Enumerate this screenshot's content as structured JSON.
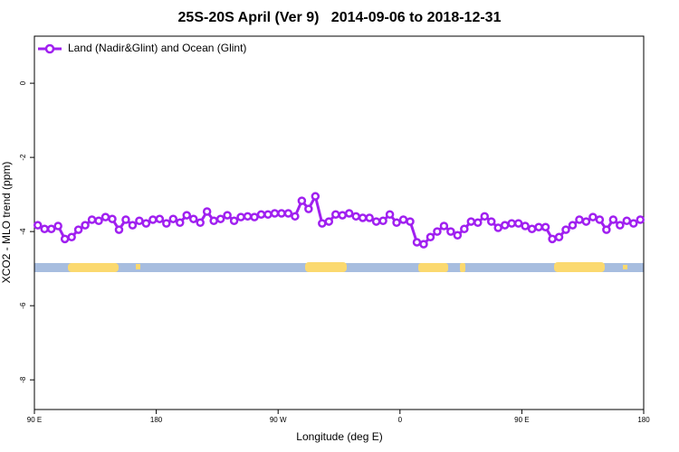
{
  "chart_data": {
    "type": "line",
    "title": "25S-20S April (Ver 9)   2014-09-06 to 2018-12-31",
    "x_label": "Longitude (deg E)",
    "y_label": "XCO2 - MLO trend (ppm)",
    "xlim": [
      90,
      540
    ],
    "xticks": [
      {
        "value": 90,
        "label": "90 E"
      },
      {
        "value": 180,
        "label": "180"
      },
      {
        "value": 270,
        "label": "90 W"
      },
      {
        "value": 360,
        "label": "0"
      },
      {
        "value": 450,
        "label": "90 E"
      },
      {
        "value": 540,
        "label": "180"
      }
    ],
    "ylim": [
      -8.8,
      1.27
    ],
    "yticks": [
      0,
      -2,
      -4,
      -6,
      -8
    ],
    "legend": "top-left",
    "x": [
      92.5,
      97.5,
      102.5,
      107.5,
      112.5,
      117.5,
      122.5,
      127.5,
      132.5,
      137.5,
      142.5,
      147.5,
      152.5,
      157.5,
      162.5,
      167.5,
      172.5,
      177.5,
      182.5,
      187.5,
      192.5,
      197.5,
      202.5,
      207.5,
      212.5,
      217.5,
      222.5,
      227.5,
      232.5,
      237.5,
      242.5,
      247.5,
      252.5,
      257.5,
      262.5,
      267.5,
      272.5,
      277.5,
      282.5,
      287.5,
      292.5,
      297.5,
      302.5,
      307.5,
      312.5,
      317.5,
      322.5,
      327.5,
      332.5,
      337.5,
      342.5,
      347.5,
      352.5,
      357.5,
      362.5,
      367.5,
      372.5,
      377.5,
      382.5,
      387.5,
      392.5,
      397.5,
      402.5,
      407.5,
      412.5,
      417.5,
      422.5,
      427.5,
      432.5,
      437.5,
      442.5,
      447.5,
      452.5,
      457.5,
      462.5,
      467.5,
      472.5,
      477.5,
      482.5,
      487.5,
      492.5,
      497.5,
      502.5,
      507.5,
      512.5,
      517.5,
      522.5,
      527.5,
      532.5,
      537.5
    ],
    "series": [
      {
        "name": "Land (Nadir&Glint) and Ocean (Glint)",
        "color": "#a020f0",
        "values": [
          -3.83,
          -3.93,
          -3.93,
          -3.85,
          -4.2,
          -4.15,
          -3.95,
          -3.83,
          -3.68,
          -3.71,
          -3.61,
          -3.66,
          -3.95,
          -3.68,
          -3.83,
          -3.71,
          -3.78,
          -3.68,
          -3.66,
          -3.78,
          -3.66,
          -3.76,
          -3.56,
          -3.66,
          -3.76,
          -3.46,
          -3.71,
          -3.66,
          -3.56,
          -3.71,
          -3.61,
          -3.59,
          -3.61,
          -3.54,
          -3.54,
          -3.51,
          -3.51,
          -3.51,
          -3.59,
          -3.17,
          -3.39,
          -3.05,
          -3.78,
          -3.73,
          -3.54,
          -3.56,
          -3.51,
          -3.59,
          -3.63,
          -3.63,
          -3.73,
          -3.71,
          -3.54,
          -3.76,
          -3.68,
          -3.73,
          -4.29,
          -4.34,
          -4.15,
          -4.0,
          -3.85,
          -4.0,
          -4.1,
          -3.93,
          -3.73,
          -3.76,
          -3.59,
          -3.73,
          -3.9,
          -3.83,
          -3.78,
          -3.78,
          -3.85,
          -3.93,
          -3.88,
          -3.88,
          -4.2,
          -4.15,
          -3.95,
          -3.83,
          -3.68,
          -3.73,
          -3.61,
          -3.68,
          -3.95,
          -3.68,
          -3.83,
          -3.71,
          -3.78,
          -3.68
        ]
      }
    ]
  }
}
